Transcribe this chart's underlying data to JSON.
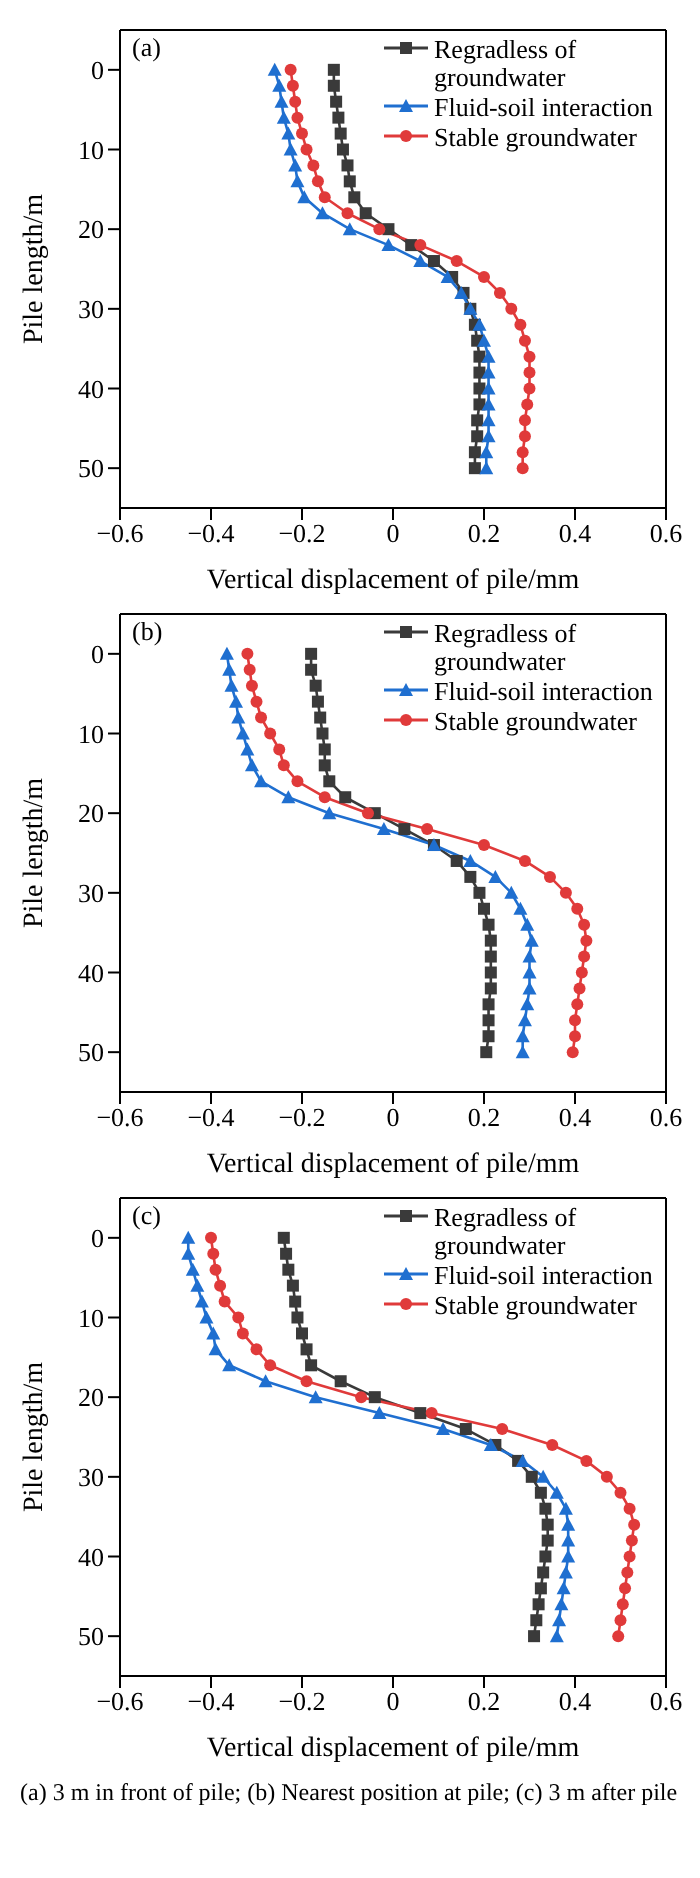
{
  "chart_data": [
    {
      "type": "line",
      "annotations": [
        "(a)"
      ],
      "xlabel": "Vertical displacement of pile/mm",
      "ylabel": "Pile length/m",
      "xlim": [
        -0.6,
        0.6
      ],
      "xticks": [
        {
          "value": -0.6,
          "label": "−0.6"
        },
        {
          "value": -0.4,
          "label": "−0.4"
        },
        {
          "value": -0.2,
          "label": "−0.2"
        },
        0,
        0.2,
        0.4,
        0.6
      ],
      "ylim": [
        55,
        -5
      ],
      "yticks": [
        0,
        10,
        20,
        30,
        40,
        50
      ],
      "legend": "top right",
      "grid": false,
      "series": [
        {
          "name": "Regradless of groundwater",
          "color": "#3a3a3a",
          "marker": "square",
          "x": [
            -0.13,
            -0.13,
            -0.125,
            -0.12,
            -0.115,
            -0.11,
            -0.1,
            -0.095,
            -0.085,
            -0.06,
            -0.01,
            0.04,
            0.09,
            0.13,
            0.155,
            0.17,
            0.18,
            0.185,
            0.19,
            0.19,
            0.19,
            0.19,
            0.185,
            0.185,
            0.18,
            0.18
          ],
          "values": [
            0,
            2,
            4,
            6,
            8,
            10,
            12,
            14,
            16,
            18,
            20,
            22,
            24,
            26,
            28,
            30,
            32,
            34,
            36,
            38,
            40,
            42,
            44,
            46,
            48,
            50
          ]
        },
        {
          "name": "Fluid-soil interaction",
          "color": "#1f6fd0",
          "marker": "triangle",
          "x": [
            -0.26,
            -0.25,
            -0.245,
            -0.24,
            -0.23,
            -0.225,
            -0.215,
            -0.21,
            -0.195,
            -0.155,
            -0.095,
            -0.01,
            0.06,
            0.12,
            0.15,
            0.17,
            0.19,
            0.2,
            0.21,
            0.21,
            0.21,
            0.21,
            0.21,
            0.21,
            0.205,
            0.205
          ],
          "values": [
            0,
            2,
            4,
            6,
            8,
            10,
            12,
            14,
            16,
            18,
            20,
            22,
            24,
            26,
            28,
            30,
            32,
            34,
            36,
            38,
            40,
            42,
            44,
            46,
            48,
            50
          ]
        },
        {
          "name": "Stable groundwater",
          "color": "#e03a3a",
          "marker": "circle",
          "x": [
            -0.225,
            -0.22,
            -0.215,
            -0.21,
            -0.2,
            -0.19,
            -0.175,
            -0.165,
            -0.15,
            -0.1,
            -0.03,
            0.06,
            0.14,
            0.2,
            0.235,
            0.26,
            0.28,
            0.29,
            0.3,
            0.3,
            0.3,
            0.295,
            0.29,
            0.29,
            0.285,
            0.285
          ],
          "values": [
            0,
            2,
            4,
            6,
            8,
            10,
            12,
            14,
            16,
            18,
            20,
            22,
            24,
            26,
            28,
            30,
            32,
            34,
            36,
            38,
            40,
            42,
            44,
            46,
            48,
            50
          ]
        }
      ]
    },
    {
      "type": "line",
      "annotations": [
        "(b)"
      ],
      "xlabel": "Vertical displacement of pile/mm",
      "ylabel": "Pile length/m",
      "xlim": [
        -0.6,
        0.6
      ],
      "xticks": [
        {
          "value": -0.6,
          "label": "−0.6"
        },
        {
          "value": -0.4,
          "label": "−0.4"
        },
        {
          "value": -0.2,
          "label": "−0.2"
        },
        0,
        0.2,
        0.4,
        0.6
      ],
      "ylim": [
        55,
        -5
      ],
      "yticks": [
        0,
        10,
        20,
        30,
        40,
        50
      ],
      "legend": "top right",
      "grid": false,
      "series": [
        {
          "name": "Regradless of groundwater",
          "color": "#3a3a3a",
          "marker": "square",
          "x": [
            -0.18,
            -0.18,
            -0.17,
            -0.165,
            -0.16,
            -0.155,
            -0.15,
            -0.15,
            -0.14,
            -0.105,
            -0.04,
            0.025,
            0.09,
            0.14,
            0.17,
            0.19,
            0.2,
            0.21,
            0.215,
            0.215,
            0.215,
            0.215,
            0.21,
            0.21,
            0.21,
            0.205
          ],
          "values": [
            0,
            2,
            4,
            6,
            8,
            10,
            12,
            14,
            16,
            18,
            20,
            22,
            24,
            26,
            28,
            30,
            32,
            34,
            36,
            38,
            40,
            42,
            44,
            46,
            48,
            50
          ]
        },
        {
          "name": "Fluid-soil interaction",
          "color": "#1f6fd0",
          "marker": "triangle",
          "x": [
            -0.365,
            -0.36,
            -0.355,
            -0.345,
            -0.34,
            -0.33,
            -0.32,
            -0.31,
            -0.29,
            -0.23,
            -0.14,
            -0.02,
            0.09,
            0.17,
            0.225,
            0.26,
            0.28,
            0.295,
            0.305,
            0.3,
            0.3,
            0.3,
            0.295,
            0.29,
            0.285,
            0.285
          ],
          "values": [
            0,
            2,
            4,
            6,
            8,
            10,
            12,
            14,
            16,
            18,
            20,
            22,
            24,
            26,
            28,
            30,
            32,
            34,
            36,
            38,
            40,
            42,
            44,
            46,
            48,
            50
          ]
        },
        {
          "name": "Stable groundwater",
          "color": "#e03a3a",
          "marker": "circle",
          "x": [
            -0.32,
            -0.315,
            -0.31,
            -0.3,
            -0.29,
            -0.27,
            -0.25,
            -0.24,
            -0.21,
            -0.15,
            -0.055,
            0.075,
            0.2,
            0.29,
            0.345,
            0.38,
            0.405,
            0.42,
            0.425,
            0.42,
            0.415,
            0.41,
            0.405,
            0.4,
            0.4,
            0.395
          ],
          "values": [
            0,
            2,
            4,
            6,
            8,
            10,
            12,
            14,
            16,
            18,
            20,
            22,
            24,
            26,
            28,
            30,
            32,
            34,
            36,
            38,
            40,
            42,
            44,
            46,
            48,
            50
          ]
        }
      ]
    },
    {
      "type": "line",
      "annotations": [
        "(c)",
        "(a) 3 m in front of pile; (b) Nearest position at pile; (c) 3 m after pile"
      ],
      "xlabel": "Vertical displacement of pile/mm",
      "ylabel": "Pile length/m",
      "xlim": [
        -0.6,
        0.6
      ],
      "xticks": [
        {
          "value": -0.6,
          "label": "−0.6"
        },
        {
          "value": -0.4,
          "label": "−0.4"
        },
        {
          "value": -0.2,
          "label": "−0.2"
        },
        0,
        0.2,
        0.4,
        0.6
      ],
      "ylim": [
        55,
        -5
      ],
      "yticks": [
        0,
        10,
        20,
        30,
        40,
        50
      ],
      "legend": "top right",
      "grid": false,
      "series": [
        {
          "name": "Regradless of groundwater",
          "color": "#3a3a3a",
          "marker": "square",
          "x": [
            -0.24,
            -0.235,
            -0.23,
            -0.22,
            -0.215,
            -0.21,
            -0.2,
            -0.19,
            -0.18,
            -0.115,
            -0.04,
            0.06,
            0.16,
            0.225,
            0.275,
            0.305,
            0.325,
            0.335,
            0.34,
            0.34,
            0.335,
            0.33,
            0.325,
            0.32,
            0.315,
            0.31
          ],
          "values": [
            0,
            2,
            4,
            6,
            8,
            10,
            12,
            14,
            16,
            18,
            20,
            22,
            24,
            26,
            28,
            30,
            32,
            34,
            36,
            38,
            40,
            42,
            44,
            46,
            48,
            50
          ]
        },
        {
          "name": "Fluid-soil interaction",
          "color": "#1f6fd0",
          "marker": "triangle",
          "x": [
            -0.45,
            -0.45,
            -0.44,
            -0.43,
            -0.42,
            -0.41,
            -0.395,
            -0.39,
            -0.36,
            -0.28,
            -0.17,
            -0.03,
            0.11,
            0.215,
            0.285,
            0.33,
            0.36,
            0.38,
            0.385,
            0.385,
            0.385,
            0.38,
            0.375,
            0.37,
            0.365,
            0.36
          ],
          "values": [
            0,
            2,
            4,
            6,
            8,
            10,
            12,
            14,
            16,
            18,
            20,
            22,
            24,
            26,
            28,
            30,
            32,
            34,
            36,
            38,
            40,
            42,
            44,
            46,
            48,
            50
          ]
        },
        {
          "name": "Stable groundwater",
          "color": "#e03a3a",
          "marker": "circle",
          "x": [
            -0.4,
            -0.395,
            -0.39,
            -0.38,
            -0.37,
            -0.34,
            -0.33,
            -0.3,
            -0.27,
            -0.19,
            -0.07,
            0.085,
            0.24,
            0.35,
            0.425,
            0.47,
            0.5,
            0.52,
            0.53,
            0.525,
            0.52,
            0.515,
            0.51,
            0.505,
            0.5,
            0.495
          ],
          "values": [
            0,
            2,
            4,
            6,
            8,
            10,
            12,
            14,
            16,
            18,
            20,
            22,
            24,
            26,
            28,
            30,
            32,
            34,
            36,
            38,
            40,
            42,
            44,
            46,
            48,
            50
          ]
        }
      ]
    }
  ]
}
